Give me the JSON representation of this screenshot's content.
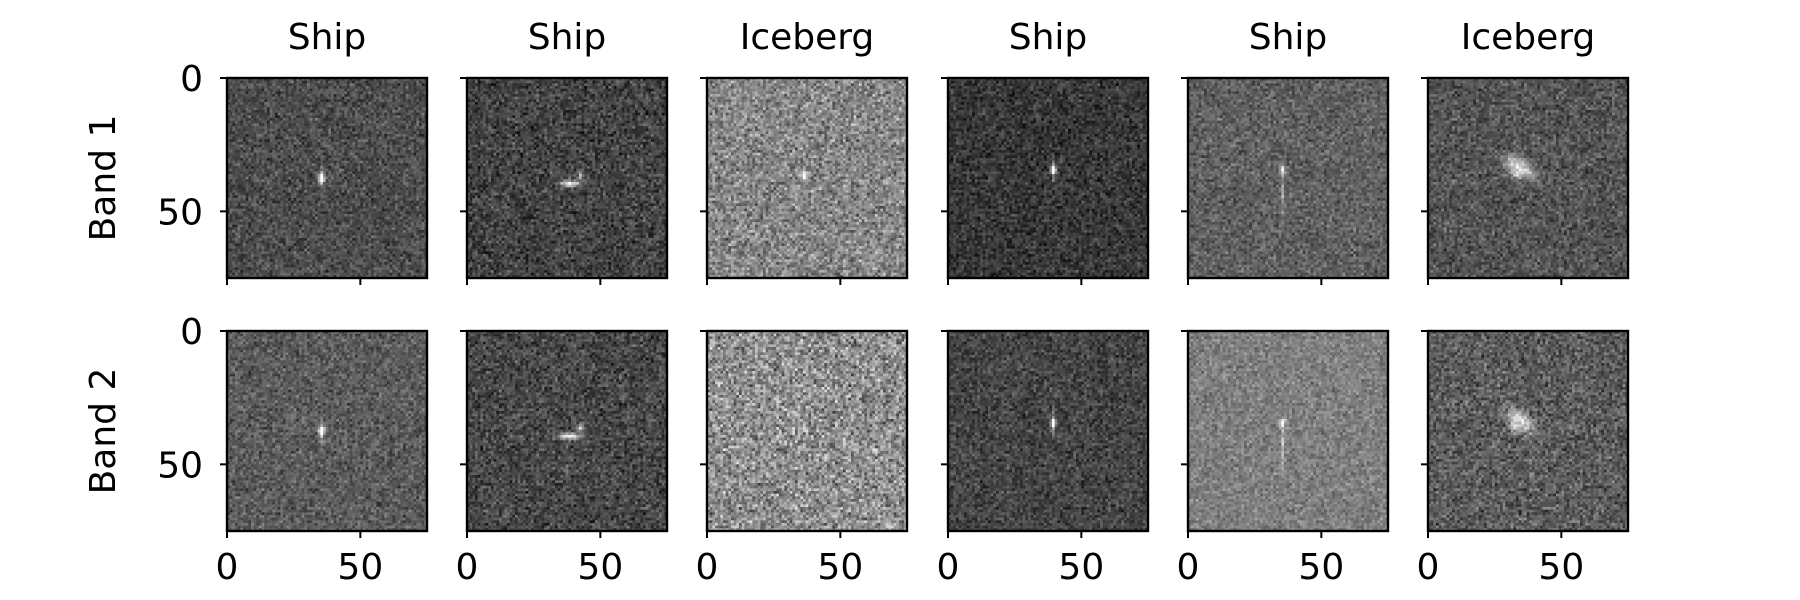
{
  "chart_data": {
    "type": "heatmap",
    "description_kind": "grid of grayscale radar image panels",
    "colormap": "gray",
    "image_size": [
      75,
      75
    ],
    "columns": [
      {
        "title": "Ship",
        "pattern": "dot",
        "target_center": [
          35,
          37
        ],
        "brightness": {
          "band1": 0.3,
          "band2": 0.36
        },
        "noise_strength": {
          "band1": 0.12,
          "band2": 0.12
        }
      },
      {
        "title": "Ship",
        "pattern": "hull",
        "target_center": [
          38,
          39
        ],
        "brightness": {
          "band1": 0.26,
          "band2": 0.28
        },
        "noise_strength": {
          "band1": 0.14,
          "band2": 0.14
        }
      },
      {
        "title": "Iceberg",
        "pattern": "faint",
        "target_center": [
          36,
          36
        ],
        "brightness": {
          "band1": 0.53,
          "band2": 0.56
        },
        "noise_strength": {
          "band1": 0.18,
          "band2": 0.22
        }
      },
      {
        "title": "Ship",
        "pattern": "dot",
        "target_center": [
          39,
          34
        ],
        "brightness": {
          "band1": 0.22,
          "band2": 0.27
        },
        "noise_strength": {
          "band1": 0.12,
          "band2": 0.12
        }
      },
      {
        "title": "Ship",
        "pattern": "streak",
        "target_center": [
          35,
          34
        ],
        "brightness": {
          "band1": 0.38,
          "band2": 0.5
        },
        "noise_strength": {
          "band1": 0.12,
          "band2": 0.11
        }
      },
      {
        "title": "Iceberg",
        "pattern": "blob",
        "target_center": [
          34,
          33
        ],
        "brightness": {
          "band1": 0.33,
          "band2": 0.36
        },
        "noise_strength": {
          "band1": 0.13,
          "band2": 0.15
        }
      }
    ],
    "rows": [
      {
        "label": "Band 1",
        "key": "band1"
      },
      {
        "label": "Band 2",
        "key": "band2"
      }
    ],
    "x_ticks": [
      0,
      50
    ],
    "y_ticks": [
      0,
      50
    ],
    "xlim": [
      0,
      75
    ],
    "ylim": [
      75,
      0
    ],
    "grid": false
  }
}
